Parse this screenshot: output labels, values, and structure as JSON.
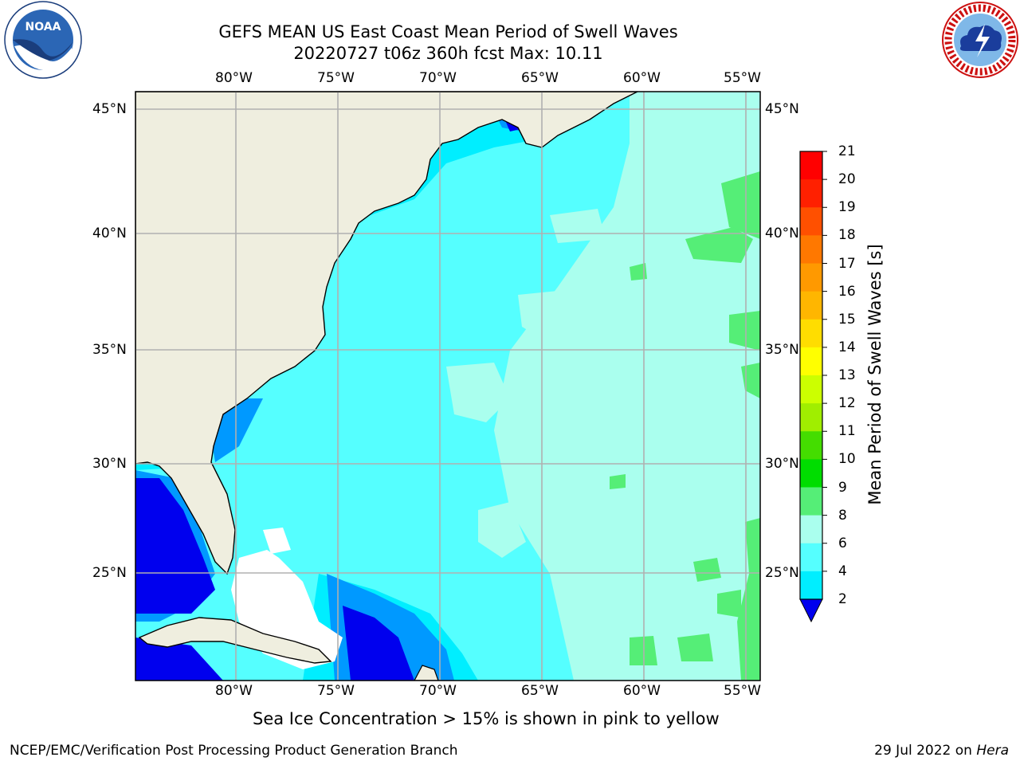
{
  "title": {
    "line1": "GEFS MEAN US East Coast Mean Period of Swell Waves",
    "line2": "20220727 t06z 360h fcst   Max: 10.11"
  },
  "map": {
    "lon_labels": [
      "80°W",
      "75°W",
      "70°W",
      "65°W",
      "60°W",
      "55°W"
    ],
    "lat_labels": [
      "45°N",
      "40°N",
      "35°N",
      "30°N",
      "25°N"
    ],
    "land_color": "#efeedf",
    "grid_color": "#b0b0b0"
  },
  "colorbar": {
    "label": "Mean Period of Swell Waves [s]",
    "ticks": [
      "21",
      "20",
      "19",
      "18",
      "17",
      "16",
      "15",
      "14",
      "13",
      "12",
      "11",
      "10",
      "9",
      "8",
      "6",
      "4",
      "2"
    ],
    "colors": [
      "#ff0000",
      "#ff2000",
      "#ff5000",
      "#ff7800",
      "#ff9900",
      "#ffb600",
      "#ffdd00",
      "#ffff00",
      "#ccff00",
      "#a0ee00",
      "#44dd00",
      "#00dd00",
      "#55ee77",
      "#aaffee",
      "#55ffff",
      "#00eeff",
      "#0099ff",
      "#0000ee"
    ],
    "extend_color": "#0000ee"
  },
  "subtitle": "Sea Ice Concentration > 15% is shown in pink to yellow",
  "footer": {
    "left": "NCEP/EMC/Verification Post Processing Product Generation Branch",
    "date": "29 Jul 2022 on",
    "host": "Hera"
  },
  "logos": {
    "noaa_text": "NOAA",
    "nws_text": "NATIONAL WEATHER SERVICE"
  }
}
